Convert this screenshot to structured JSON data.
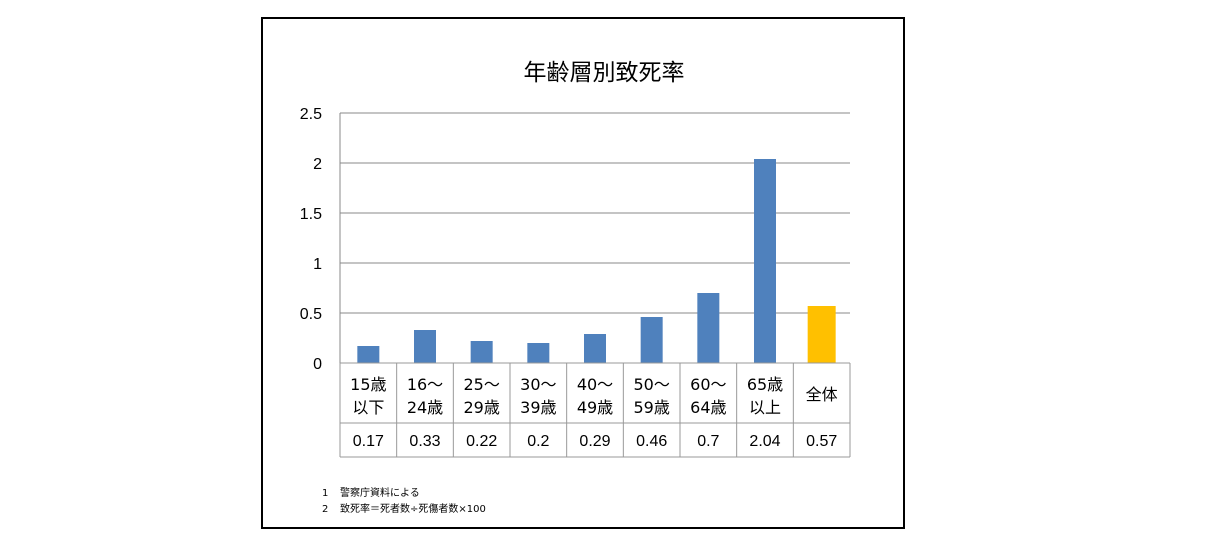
{
  "chart_data": {
    "type": "bar",
    "title": "年齢層別致死率",
    "categories": [
      [
        "15歳",
        "以下"
      ],
      [
        "16～",
        "24歳"
      ],
      [
        "25～",
        "29歳"
      ],
      [
        "30～",
        "39歳"
      ],
      [
        "40～",
        "49歳"
      ],
      [
        "50～",
        "59歳"
      ],
      [
        "60～",
        "64歳"
      ],
      [
        "65歳",
        "以上"
      ],
      [
        "全体"
      ]
    ],
    "values": [
      0.17,
      0.33,
      0.22,
      0.2,
      0.29,
      0.46,
      0.7,
      2.04,
      0.57
    ],
    "value_labels": [
      "0.17",
      "0.33",
      "0.22",
      "0.2",
      "0.29",
      "0.46",
      "0.7",
      "2.04",
      "0.57"
    ],
    "y_ticks": [
      "0",
      "0.5",
      "1",
      "1.5",
      "2",
      "2.5"
    ],
    "ylim": [
      0,
      2.5
    ],
    "grid": true,
    "colors": {
      "bar": "#4f81bd",
      "highlight": "#ffc000",
      "grid": "#888888",
      "table_border": "#999999"
    },
    "highlight_index": 8
  },
  "notes": [
    {
      "num": "1",
      "text": "警察庁資料による"
    },
    {
      "num": "2",
      "text": "致死率＝死者数÷死傷者数×100"
    }
  ]
}
